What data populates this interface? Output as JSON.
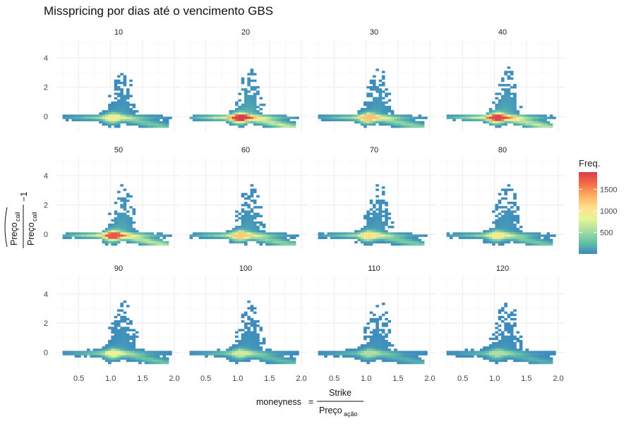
{
  "chart_data": {
    "type": "heatmap",
    "title": "Misspricing por dias até o vencimento GBS",
    "facets": [
      "10",
      "20",
      "30",
      "40",
      "50",
      "60",
      "70",
      "80",
      "90",
      "100",
      "110",
      "120"
    ],
    "x_ticks": [
      0.5,
      1.0,
      1.5,
      2.0
    ],
    "x_tick_labels": [
      "0.5",
      "1.0",
      "1.5",
      "2.0"
    ],
    "y_ticks": [
      0,
      2,
      4
    ],
    "y_tick_labels": [
      "0",
      "2",
      "4"
    ],
    "xlim": [
      0.15,
      2.1
    ],
    "ylim": [
      -1.0,
      5.2
    ],
    "xlabel": {
      "lhs": "moneyness",
      "eq": "=",
      "numerator": "Strike",
      "denominator": "Preço",
      "denominator_sub": "ação"
    },
    "ylabel": {
      "numerator": "Preço",
      "numerator_sub": "call",
      "denominator": "Preço",
      "denominator_sub": "call",
      "suffix": "−1"
    },
    "legend": {
      "title": "Freq.",
      "ticks": [
        500,
        1000,
        1500
      ],
      "tick_labels": [
        "500",
        "1000",
        "1500"
      ],
      "range": [
        0,
        1900
      ],
      "colors": [
        "#3a88c0",
        "#66c2a5",
        "#abdda4",
        "#e6f598",
        "#fee08b",
        "#fdae61",
        "#f46d43",
        "#d53e4f"
      ],
      "placement": "right"
    },
    "peak_freq": [
      950,
      1900,
      1250,
      1850,
      1750,
      1200,
      1050,
      950,
      850,
      700,
      550,
      550
    ],
    "grid": true
  }
}
